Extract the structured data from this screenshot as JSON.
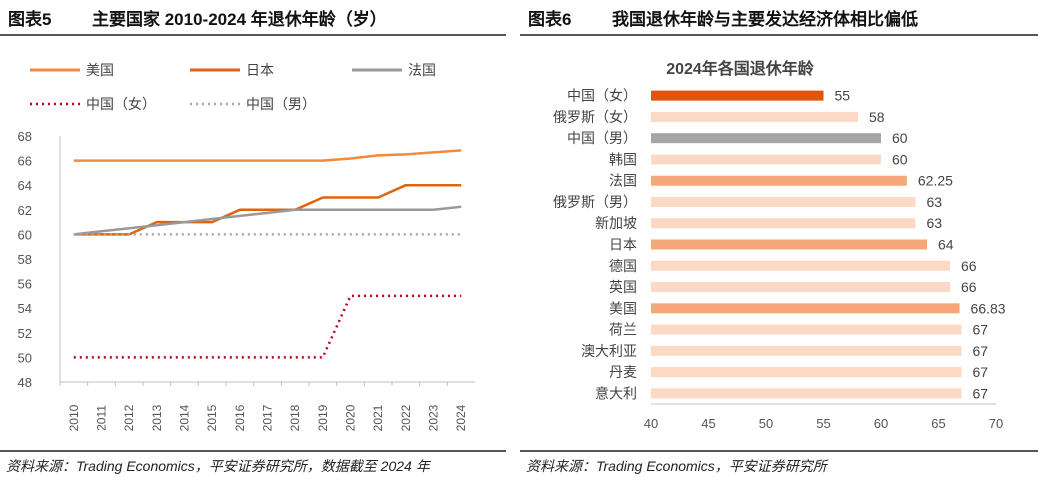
{
  "left_panel": {
    "figure_no": "图表5",
    "figure_title": "主要国家 2010-2024 年退休年龄（岁）",
    "source": "资料来源：Trading Economics，平安证券研究所，数据截至 2024 年"
  },
  "right_panel": {
    "figure_no": "图表6",
    "figure_title": "我国退休年龄与主要发达经济体相比偏低",
    "source": "资料来源：Trading Economics，平安证券研究所"
  },
  "chart_data": [
    {
      "type": "line",
      "title": "",
      "x": [
        "2010",
        "2011",
        "2012",
        "2013",
        "2014",
        "2015",
        "2016",
        "2017",
        "2018",
        "2019",
        "2020",
        "2021",
        "2022",
        "2023",
        "2024"
      ],
      "ylim": [
        48,
        68
      ],
      "yticks": [
        48,
        50,
        52,
        54,
        56,
        58,
        60,
        62,
        64,
        66,
        68
      ],
      "grid": false,
      "legend_position": "top",
      "series": [
        {
          "name": "美国",
          "color": "#F08A3C",
          "dash": "solid",
          "values": [
            66,
            66,
            66,
            66,
            66,
            66,
            66,
            66,
            66,
            66,
            66.17,
            66.42,
            66.5,
            66.67,
            66.83
          ]
        },
        {
          "name": "日本",
          "color": "#E2620F",
          "dash": "solid",
          "values": [
            60,
            60,
            60,
            61,
            61,
            61,
            62,
            62,
            62,
            63,
            63,
            63,
            64,
            64,
            64
          ]
        },
        {
          "name": "法国",
          "color": "#999999",
          "dash": "solid",
          "values": [
            60,
            60.25,
            60.5,
            60.75,
            61,
            61.25,
            61.5,
            61.75,
            62,
            62,
            62,
            62,
            62,
            62,
            62.25
          ]
        },
        {
          "name": "中国（女）",
          "color": "#C0001A",
          "dash": "dotted",
          "values": [
            50,
            50,
            50,
            50,
            50,
            50,
            50,
            50,
            50,
            50,
            55,
            55,
            55,
            55,
            55
          ]
        },
        {
          "name": "中国（男）",
          "color": "#A6A6A6",
          "dash": "dotted",
          "values": [
            60,
            60,
            60,
            60,
            60,
            60,
            60,
            60,
            60,
            60,
            60,
            60,
            60,
            60,
            60
          ]
        }
      ]
    },
    {
      "type": "bar",
      "orientation": "horizontal",
      "title": "2024年各国退休年龄",
      "xlim": [
        40,
        70
      ],
      "xticks": [
        40,
        45,
        50,
        55,
        60,
        65,
        70
      ],
      "grid": false,
      "categories": [
        "中国（女）",
        "俄罗斯（女）",
        "中国（男）",
        "韩国",
        "法国",
        "俄罗斯（男）",
        "新加坡",
        "日本",
        "德国",
        "英国",
        "美国",
        "荷兰",
        "澳大利亚",
        "丹麦",
        "意大利"
      ],
      "values": [
        55,
        58,
        60,
        60,
        62.25,
        63,
        63,
        64,
        66,
        66,
        66.83,
        67,
        67,
        67,
        67
      ],
      "value_labels": [
        "55",
        "58",
        "60",
        "60",
        "62.25",
        "63",
        "63",
        "64",
        "66",
        "66",
        "66.83",
        "67",
        "67",
        "67",
        "67"
      ],
      "colors": [
        "#E2540A",
        "#FBD9C5",
        "#A6A6A6",
        "#FBD9C5",
        "#F5A77A",
        "#FBD9C5",
        "#FBD9C5",
        "#F5A77A",
        "#FBD9C5",
        "#FBD9C5",
        "#F5A77A",
        "#FBD9C5",
        "#FBD9C5",
        "#FBD9C5",
        "#FBD9C5"
      ]
    }
  ]
}
